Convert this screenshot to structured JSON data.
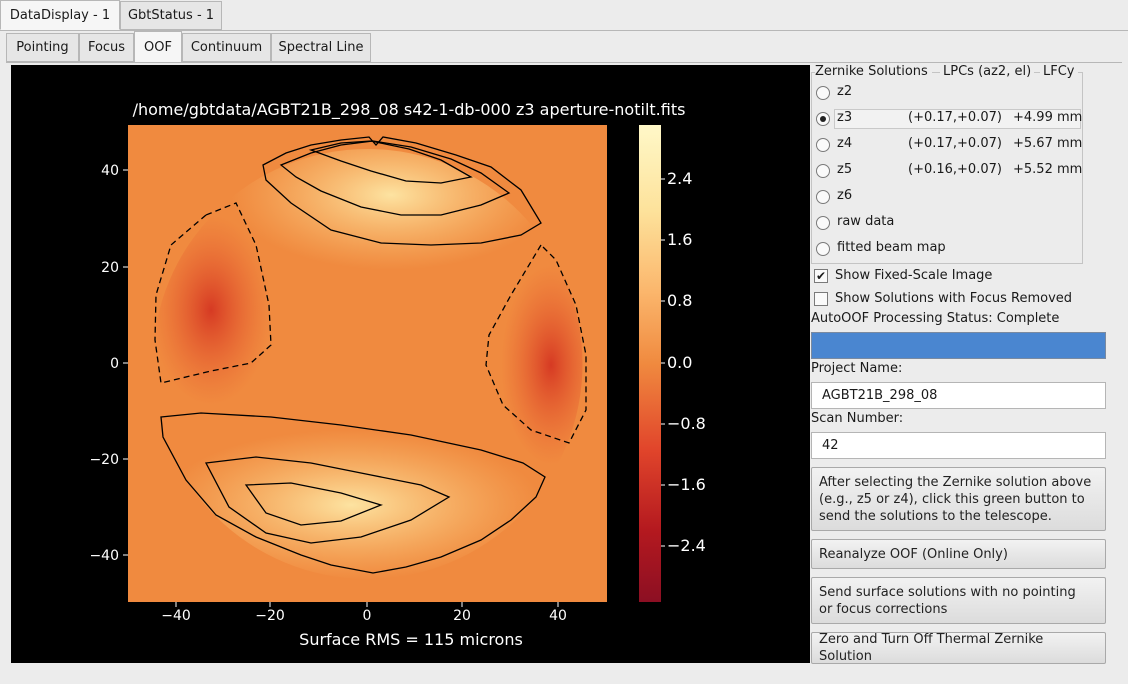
{
  "window_tabs": [
    "DataDisplay - 1",
    "GbtStatus - 1"
  ],
  "view_tabs": [
    "Pointing",
    "Focus",
    "OOF",
    "Continuum",
    "Spectral Line"
  ],
  "plot": {
    "title": "/home/gbtdata/AGBT21B_298_08 s42-1-db-000 z3 aperture-notilt.fits",
    "caption": "Surface RMS = 115 microns",
    "x_ticks": [
      "−40",
      "−20",
      "0",
      "20",
      "40"
    ],
    "y_ticks": [
      "40",
      "20",
      "0",
      "−20",
      "−40"
    ],
    "colorbar_ticks": [
      "2.4",
      "1.6",
      "0.8",
      "0.0",
      "−0.8",
      "−1.6",
      "−2.4"
    ],
    "colors": {
      "low": "#8c0f23",
      "mid": "#f08a3f",
      "high": "#fff8c8"
    }
  },
  "zernike": {
    "header": {
      "col1": "Zernike Solutions",
      "col2": "LPCs (az2, el)",
      "col3": "LFCy"
    },
    "options": [
      {
        "label": "z2",
        "lpcs": "",
        "lfcy": ""
      },
      {
        "label": "z3",
        "lpcs": "(+0.17,+0.07)",
        "lfcy": "+4.99 mm"
      },
      {
        "label": "z4",
        "lpcs": "(+0.17,+0.07)",
        "lfcy": "+5.67 mm"
      },
      {
        "label": "z5",
        "lpcs": "(+0.16,+0.07)",
        "lfcy": "+5.52 mm"
      },
      {
        "label": "z6",
        "lpcs": "",
        "lfcy": ""
      },
      {
        "label": "raw data",
        "lpcs": "",
        "lfcy": ""
      },
      {
        "label": "fitted beam map",
        "lpcs": "",
        "lfcy": ""
      }
    ],
    "selected": "z3"
  },
  "checks": {
    "fixed_scale": {
      "label": "Show Fixed-Scale Image",
      "checked": true
    },
    "focus_removed": {
      "label": "Show Solutions with Focus Removed",
      "checked": false
    }
  },
  "status": {
    "label": "AutoOOF Processing Status: Complete",
    "progress": 1.0,
    "color": "#4a86d0"
  },
  "project": {
    "label": "Project Name:",
    "value": "AGBT21B_298_08"
  },
  "scan": {
    "label": "Scan Number:",
    "value": "42"
  },
  "buttons": {
    "send_green": "After selecting the Zernike solution above\n (e.g., z5 or z4), click this green button to\nsend the solutions to the telescope.",
    "reanalyze": "Reanalyze OOF (Online Only)",
    "send_surface": "Send surface solutions with no pointing\n or focus corrections",
    "zero_thermal": "Zero and Turn Off Thermal Zernike Solution"
  }
}
